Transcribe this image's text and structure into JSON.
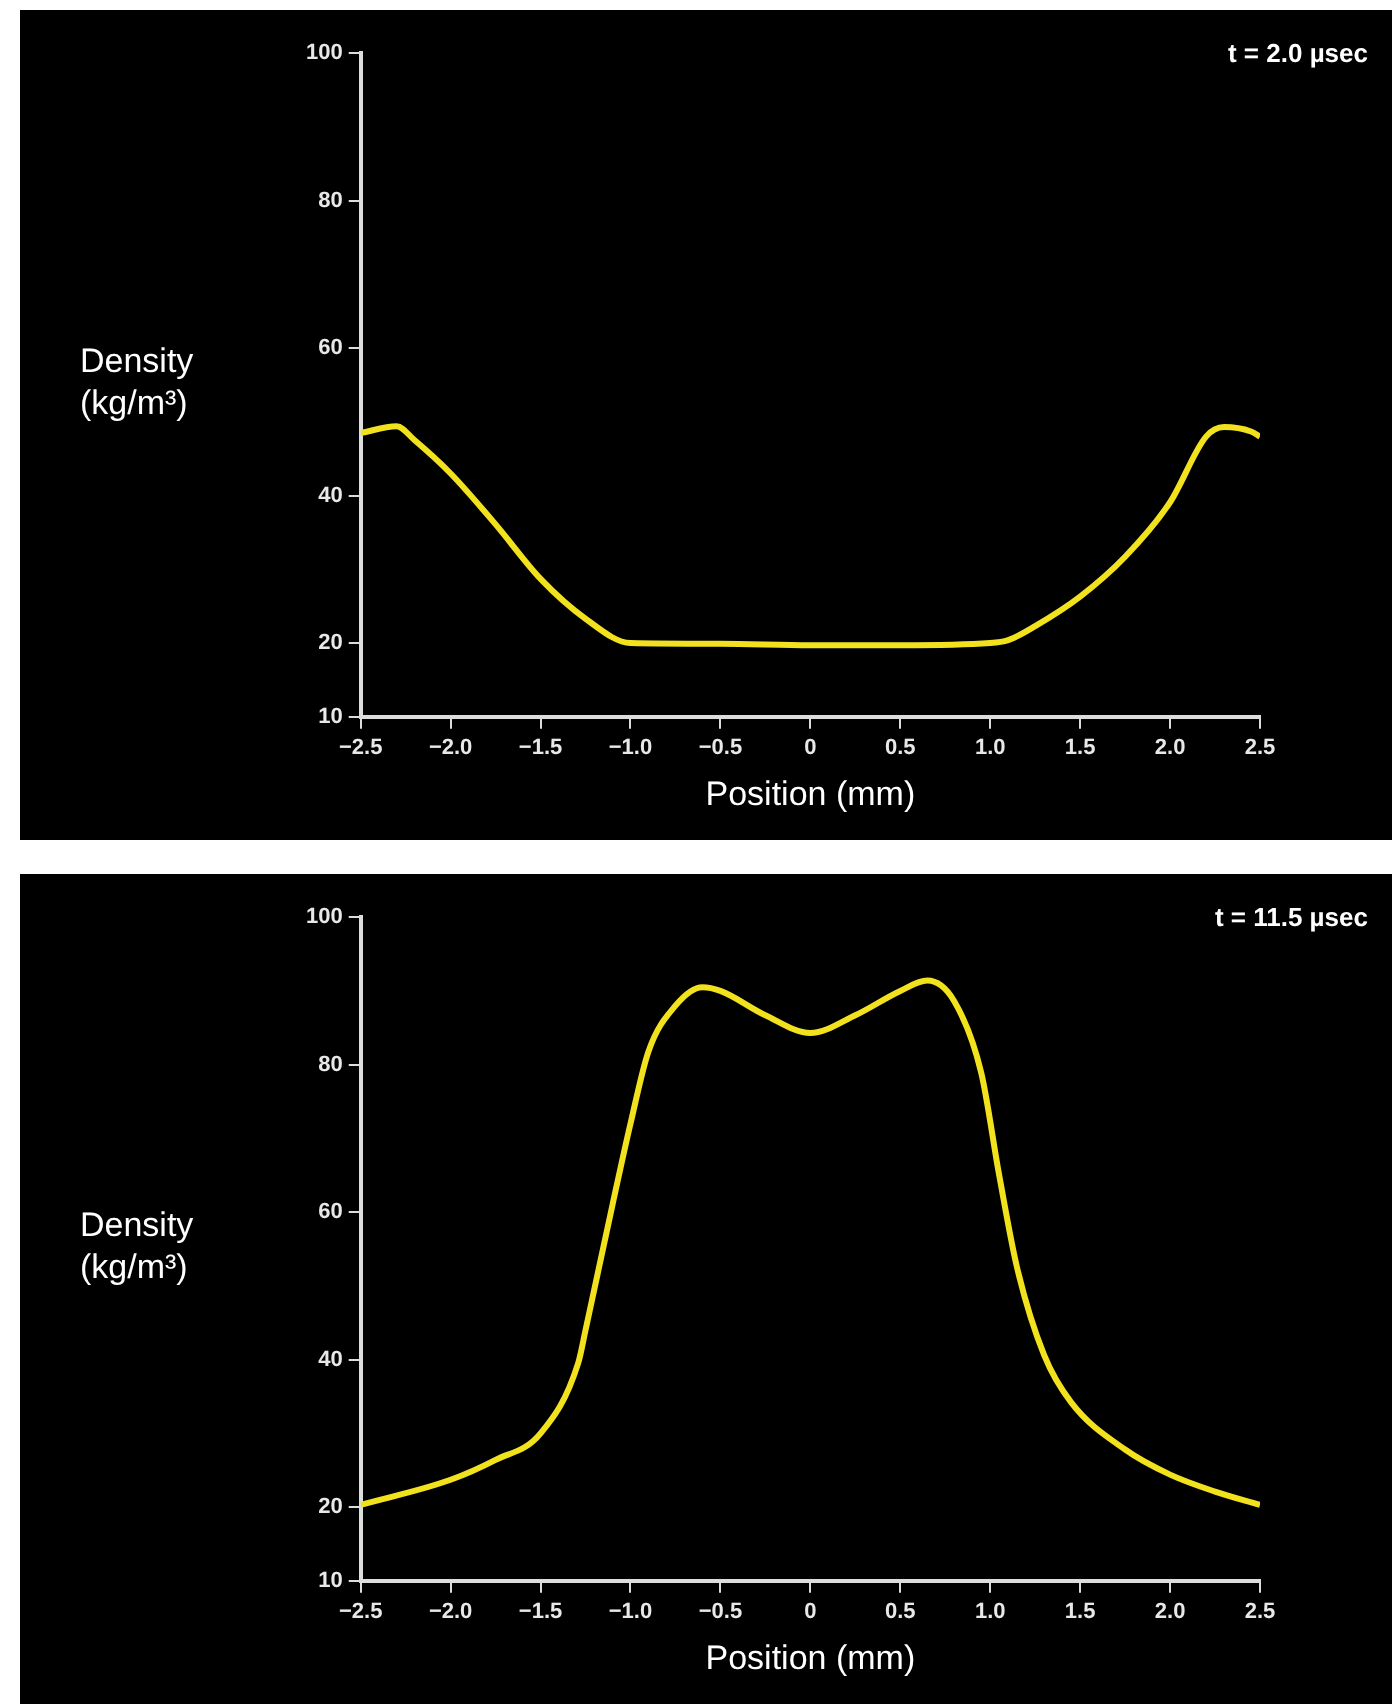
{
  "chart_data": [
    {
      "type": "line",
      "xlabel": "Position (mm)",
      "ylabel": "Density (kg/m³)",
      "annotations": [
        "t = 2.0 µsec"
      ],
      "series": [
        {
          "color": "#f2e21e",
          "x": [
            -2.5,
            -2.3,
            -2.2,
            -2.0,
            -1.75,
            -1.5,
            -1.25,
            -1.0,
            -0.5,
            0,
            0.5,
            1.0,
            1.1,
            1.25,
            1.5,
            1.75,
            2.0,
            2.2,
            2.3,
            2.45,
            2.5
          ],
          "values": [
            48.5,
            49.4,
            47.5,
            43,
            36.1,
            28.7,
            23.3,
            20,
            19.9,
            19.7,
            19.7,
            20,
            20.4,
            22.3,
            26.3,
            31.7,
            39.1,
            48,
            49.3,
            48.7,
            48
          ]
        }
      ],
      "xlim": [
        -2.5,
        2.5
      ],
      "ylim": [
        10,
        100
      ],
      "xticks": [
        {
          "value": -2.5,
          "label": "−2.5"
        },
        {
          "value": -2,
          "label": "−2.0"
        },
        {
          "value": -1.5,
          "label": "−1.5"
        },
        {
          "value": -1,
          "label": "−1.0"
        },
        {
          "value": -0.5,
          "label": "−0.5"
        },
        0,
        0.5,
        {
          "value": 1,
          "label": "1.0"
        },
        1.5,
        {
          "value": 2,
          "label": "2.0"
        },
        2.5
      ],
      "yticks": [
        10,
        20,
        40,
        60,
        80,
        100
      ],
      "grid": false,
      "legend": false,
      "marker": "none"
    },
    {
      "type": "line",
      "xlabel": "Position (mm)",
      "ylabel": "Density (kg/m³)",
      "annotations": [
        "t = 11.5 µsec"
      ],
      "series": [
        {
          "color": "#f2e21e",
          "x": [
            -2.5,
            -2.0,
            -1.75,
            -1.5,
            -1.29,
            -1.25,
            -1.1,
            -1.0,
            -0.9,
            -0.75,
            -0.6,
            -0.5,
            -0.25,
            0,
            0.25,
            0.5,
            0.65,
            0.8,
            0.95,
            1.05,
            1.15,
            1.3,
            1.45,
            1.75,
            2.0,
            2.25,
            2.5
          ],
          "values": [
            20.3,
            23.7,
            26.4,
            30,
            39.6,
            44,
            61,
            72,
            81.8,
            88,
            90.5,
            90,
            86.7,
            84.3,
            86.7,
            90,
            91.4,
            88.6,
            78.9,
            65,
            52.4,
            40.6,
            34.2,
            27.8,
            24.4,
            22.1,
            20.3
          ]
        }
      ],
      "xlim": [
        -2.5,
        2.5
      ],
      "ylim": [
        10,
        100
      ],
      "xticks": [
        {
          "value": -2.5,
          "label": "−2.5"
        },
        {
          "value": -2,
          "label": "−2.0"
        },
        {
          "value": -1.5,
          "label": "−1.5"
        },
        {
          "value": -1,
          "label": "−1.0"
        },
        {
          "value": -0.5,
          "label": "−0.5"
        },
        0,
        0.5,
        {
          "value": 1,
          "label": "1.0"
        },
        1.5,
        {
          "value": 2,
          "label": "2.0"
        },
        2.5
      ],
      "yticks": [
        10,
        20,
        40,
        60,
        80,
        100
      ],
      "grid": false,
      "legend": false,
      "marker": "none"
    }
  ]
}
